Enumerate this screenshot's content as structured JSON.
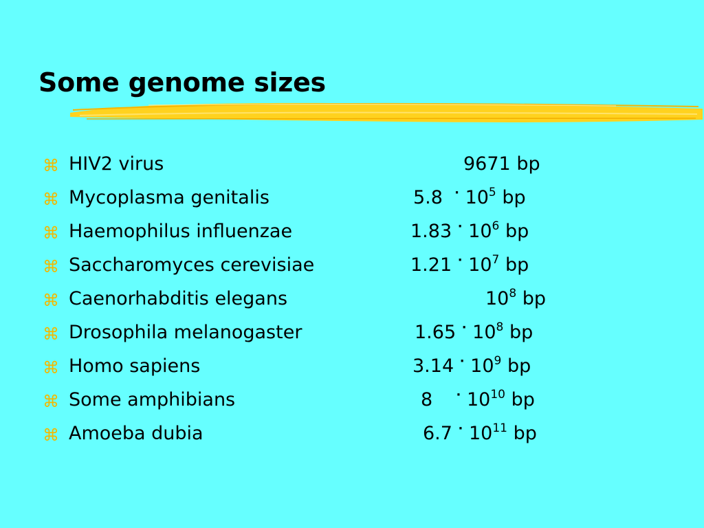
{
  "slide": {
    "title": "Some genome sizes",
    "bullet_icon": "command-key-icon",
    "colors": {
      "background": "#66FFFF",
      "bullet": "#F2B800",
      "brush": "#FFD21E"
    },
    "items": [
      {
        "name": "HIV2 virus",
        "value": {
          "plain": "9671",
          "unit": "bp"
        }
      },
      {
        "name": "Mycoplasma genitalis",
        "value": {
          "mantissa": "5.8",
          "dot": "·",
          "base": "10",
          "exponent": "5",
          "unit": "bp"
        }
      },
      {
        "name": "Haemophilus influenzae",
        "value": {
          "mantissa": "1.83",
          "dot": "·",
          "base": "10",
          "exponent": "6",
          "unit": "bp"
        }
      },
      {
        "name": "Saccharomyces cerevisiae",
        "value": {
          "mantissa": "1.21",
          "dot": "·",
          "base": "10",
          "exponent": "7",
          "unit": "bp"
        }
      },
      {
        "name": "Caenorhabditis elegans",
        "value": {
          "base": "10",
          "exponent": "8",
          "unit": "bp"
        }
      },
      {
        "name": "Drosophila melanogaster",
        "value": {
          "mantissa": "1.65",
          "dot": "·",
          "base": "10",
          "exponent": "8",
          "unit": "bp"
        }
      },
      {
        "name": "Homo sapiens",
        "value": {
          "mantissa": "3.14",
          "dot": "·",
          "base": "10",
          "exponent": "9",
          "unit": "bp"
        }
      },
      {
        "name": "Some amphibians",
        "value": {
          "mantissa": "8",
          "dot": "·",
          "base": "10",
          "exponent": "10",
          "unit": "bp"
        }
      },
      {
        "name": "Amoeba dubia",
        "value": {
          "mantissa": "6.7",
          "dot": "·",
          "base": "10",
          "exponent": "11",
          "unit": "bp"
        }
      }
    ]
  }
}
